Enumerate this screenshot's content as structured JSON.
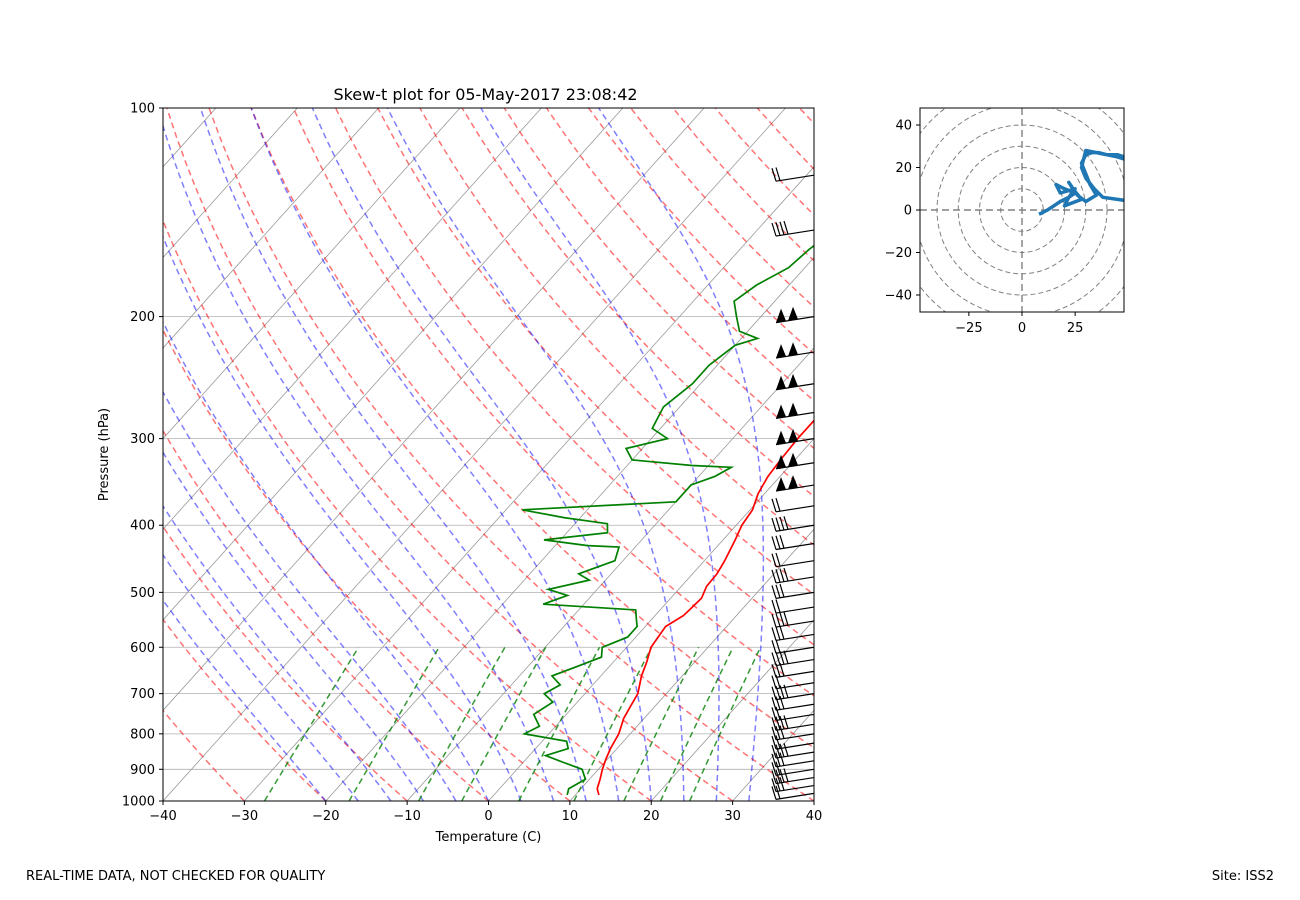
{
  "chart_data": [
    {
      "type": "line",
      "title": "Skew-t plot for 05-May-2017 23:08:42",
      "xlabel": "Temperature (C)",
      "ylabel": "Pressure (hPa)",
      "xlim": [
        -40,
        40
      ],
      "ylim": [
        1000,
        100
      ],
      "y_scale": "log",
      "skew_deg_per_decade": 76.5,
      "x_ticks": [
        -40,
        -30,
        -20,
        -10,
        0,
        10,
        20,
        30,
        40
      ],
      "x_tick_labels": [
        "−40",
        "−30",
        "−20",
        "−10",
        "0",
        "10",
        "20",
        "30",
        "40"
      ],
      "y_ticks": [
        1000,
        900,
        800,
        700,
        600,
        500,
        400,
        300,
        200,
        100
      ],
      "y_tick_labels": [
        "1000",
        "900",
        "800",
        "700",
        "600",
        "500",
        "400",
        "300",
        "200",
        "100"
      ],
      "grid": true,
      "colors": {
        "temperature": "#ff0000",
        "dewpoint": "#008000",
        "dry_adiabats": "#ff0000",
        "moist_adiabats": "#0000ff",
        "mixing_ratio": "#008000",
        "isotherms": "#999999",
        "barbs": "#000000"
      },
      "series": [
        {
          "id": "temperature",
          "x": [
            12.9,
            12.0,
            11.3,
            10.5,
            9.8,
            9.2,
            8.6,
            7.5,
            7.0,
            6.5,
            5.0,
            4.1,
            3.0,
            2.5,
            3.5,
            3.8,
            3.1,
            3.0,
            2.5,
            1.5,
            0.7,
            0.3,
            -0.8,
            -1.5,
            -1.8,
            -2.0,
            -2.0,
            -2.0,
            -1.5,
            -0.5,
            1.0,
            2.0,
            3.0,
            4.5,
            5.5,
            6.0,
            7.0,
            7.0,
            9.0,
            10.5,
            11.0,
            12.5,
            14.0,
            18.0,
            22.0,
            26.0,
            32.0,
            36.0
          ],
          "y": [
            980,
            960,
            930,
            900,
            870,
            840,
            800,
            760,
            730,
            700,
            660,
            630,
            600,
            560,
            540,
            510,
            490,
            470,
            450,
            420,
            400,
            380,
            360,
            340,
            320,
            300,
            280,
            260,
            245,
            235,
            222,
            210,
            200,
            195,
            185,
            175,
            168,
            160,
            150,
            143,
            135,
            127,
            120,
            112,
            107,
            104,
            101,
            100
          ]
        },
        {
          "id": "dewpoint",
          "x": [
            9.0,
            8.5,
            9.5,
            8.0,
            5.0,
            2.0,
            4.0,
            3.0,
            -3.0,
            -2.0,
            -4.0,
            -3.0,
            -5.0,
            -4.0,
            -6.0,
            -4.0,
            -2.0,
            -3.0,
            -1.0,
            -1.0,
            -2.0,
            -3.0,
            -15.0,
            -13.0,
            -16.0,
            -12.0,
            -14.0,
            -11.0,
            -12.0,
            -16.0,
            -22.0,
            -15.0,
            -16.0,
            -22.0,
            -28.0,
            -10.0,
            -10.0,
            -8.0,
            -7.0,
            -12.0,
            -20.0,
            -22.0,
            -18.0,
            -21.0,
            -22.0,
            -21.0,
            -21.0,
            -20.0,
            -18.0,
            -21.0,
            -23.0,
            -25.0,
            -24.0,
            -22.0,
            -21.5,
            -20.5,
            -18.0,
            -17.5,
            -16.5,
            -14.5,
            -11.0,
            -6.5,
            -3.5
          ],
          "y": [
            980,
            960,
            930,
            900,
            880,
            860,
            840,
            820,
            800,
            780,
            750,
            720,
            700,
            680,
            660,
            640,
            620,
            600,
            580,
            560,
            545,
            530,
            520,
            505,
            495,
            480,
            470,
            450,
            430,
            428,
            420,
            410,
            398,
            390,
            380,
            370,
            350,
            340,
            330,
            328,
            322,
            310,
            300,
            290,
            270,
            250,
            235,
            220,
            215,
            210,
            200,
            190,
            180,
            170,
            160,
            150,
            140,
            130,
            120,
            112,
            106,
            102,
            100
          ]
        }
      ],
      "wind_barbs_levels_hPa": [
        975,
        950,
        925,
        900,
        875,
        850,
        825,
        800,
        775,
        750,
        725,
        700,
        675,
        650,
        625,
        600,
        575,
        550,
        525,
        500,
        475,
        450,
        425,
        400,
        375,
        350,
        325,
        300,
        275,
        250,
        225,
        200,
        150,
        125
      ],
      "hodograph": {
        "type": "line",
        "xlim": [
          -48,
          48
        ],
        "ylim": [
          -48,
          48
        ],
        "x_ticks": [
          -25,
          0,
          25
        ],
        "x_tick_labels": [
          "−25",
          "0",
          "25"
        ],
        "y_ticks": [
          -40,
          -20,
          0,
          20,
          40
        ],
        "y_tick_labels": [
          "−40",
          "−20",
          "0",
          "20",
          "40"
        ],
        "range_ring_interval": 10,
        "color": "#1f77b4",
        "u": [
          8,
          12,
          15,
          18,
          22,
          25,
          20,
          16,
          18,
          25,
          22,
          20,
          28,
          24,
          22,
          26,
          30,
          35,
          32,
          30,
          28,
          30,
          33,
          36,
          40,
          45,
          48,
          50,
          48,
          45,
          40,
          35,
          30,
          28,
          30,
          34,
          38,
          45,
          52
        ],
        "v": [
          -2,
          0,
          2,
          4,
          6,
          8,
          10,
          12,
          8,
          10,
          6,
          2,
          5,
          10,
          13,
          7,
          4,
          7,
          12,
          17,
          22,
          26,
          27,
          27,
          26,
          26,
          25,
          24,
          24,
          25,
          26,
          27,
          28,
          20,
          15,
          10,
          6,
          5,
          4
        ]
      }
    }
  ],
  "footer": {
    "left": "REAL-TIME DATA, NOT CHECKED FOR QUALITY",
    "right": "Site: ISS2"
  }
}
